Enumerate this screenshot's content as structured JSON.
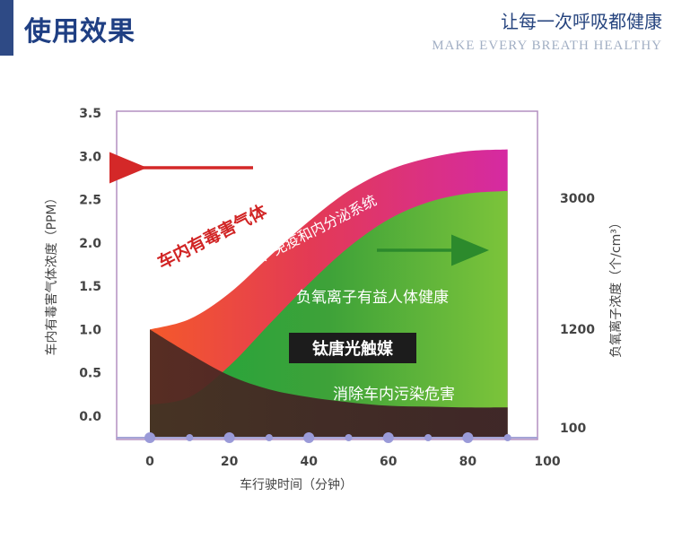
{
  "header": {
    "title": "使用效果",
    "slogan": "让每一次呼吸都健康",
    "slogan_en": "MAKE EVERY BREATH HEALTHY"
  },
  "colors": {
    "accent_bar": "#2e4a85",
    "harmful_gas_band": "#e0306a",
    "negative_ion_band": "#44a83a",
    "dark_band": "#4a2a22",
    "plot_border": "#b38fc0",
    "red_arrow": "#d42828",
    "green_arrow": "#2c8a2c"
  },
  "chart_data": {
    "type": "area",
    "xlabel": "车行驶时间（分钟）",
    "ylabel_left": "车内有毒害气体浓度（PPM）",
    "ylabel_right": "负氧离子浓度（个/cm³）",
    "x_ticks": [
      "0",
      "20",
      "40",
      "60",
      "80",
      "100"
    ],
    "xlim": [
      0,
      100
    ],
    "y_left_ticks": [
      "0.0",
      "0.5",
      "1.0",
      "1.5",
      "2.0",
      "2.5",
      "3.0",
      "3.5"
    ],
    "ylim_left": [
      0,
      3.5
    ],
    "y_right_ticks": [
      "100",
      "1200",
      "3000"
    ],
    "grid": false,
    "series": [
      {
        "x": [
          0,
          10,
          20,
          30,
          40,
          50,
          60,
          70,
          80,
          90
        ],
        "values": [
          1.0,
          1.12,
          1.42,
          1.84,
          2.25,
          2.6,
          2.84,
          2.98,
          3.06,
          3.08
        ]
      },
      {
        "x": [
          0,
          10,
          20,
          30,
          40,
          50,
          60,
          70,
          80,
          90
        ],
        "values": [
          0.13,
          0.22,
          0.58,
          1.06,
          1.53,
          1.95,
          2.27,
          2.47,
          2.57,
          2.6
        ]
      },
      {
        "x": [
          0,
          10,
          20,
          30,
          40,
          50,
          60,
          70,
          80,
          90
        ],
        "values": [
          1.0,
          0.72,
          0.47,
          0.31,
          0.22,
          0.16,
          0.12,
          0.11,
          0.1,
          0.1
        ]
      }
    ],
    "marker_x": [
      0,
      10,
      20,
      30,
      40,
      50,
      60,
      70,
      80,
      90
    ],
    "annotations": {
      "harmful_title": "车内有毒害气体",
      "harmful_desc": "损害人体神经、免疫和内分泌系统",
      "ion_benefit": "负氧离子有益人体健康",
      "catalyst_label": "钛唐光触媒",
      "pollution_label": "消除车内污染危害"
    }
  }
}
